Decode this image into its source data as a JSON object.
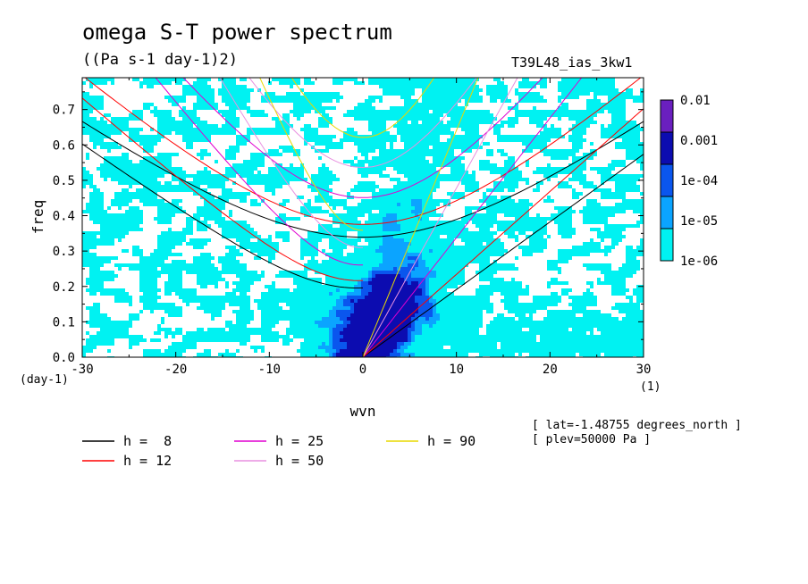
{
  "chart_data": {
    "type": "heatmap",
    "title": "omega S-T power spectrum",
    "subtitle": "((Pa s-1 day-1)2)",
    "run_name": "T39L48_ias_3kw1",
    "xlabel": "wvn",
    "ylabel": "freq",
    "x_unit": "(1)",
    "y_unit": "(day-1)",
    "xlim": [
      -30,
      30
    ],
    "ylim": [
      0,
      0.79
    ],
    "xticks": [
      "-30",
      "-20",
      "-10",
      "0",
      "10",
      "20",
      "30"
    ],
    "yticks": [
      "0.0",
      "0.1",
      "0.2",
      "0.3",
      "0.4",
      "0.5",
      "0.6",
      "0.7"
    ],
    "colorbar": {
      "labels": [
        "0.01",
        "0.001",
        "1e-04",
        "1e-05",
        "1e-06"
      ],
      "colors": [
        "#6a1fbf",
        "#0c0cb0",
        "#0a56ee",
        "#0ba4ff",
        "#00f2f2"
      ]
    },
    "dispersion_curves": [
      {
        "label": "h =  8",
        "h": 8,
        "color": "#000000"
      },
      {
        "label": "h = 12",
        "h": 12,
        "color": "#ff0000"
      },
      {
        "label": "h = 25",
        "h": 25,
        "color": "#e000d0"
      },
      {
        "label": "h = 50",
        "h": 50,
        "color": "#e890e0"
      },
      {
        "label": "h = 90",
        "h": 90,
        "color": "#e8d800"
      }
    ],
    "annotations": [
      "[ lat=-1.48755 degrees_north ]",
      "[ plev=50000 Pa ]"
    ],
    "grid": false
  }
}
